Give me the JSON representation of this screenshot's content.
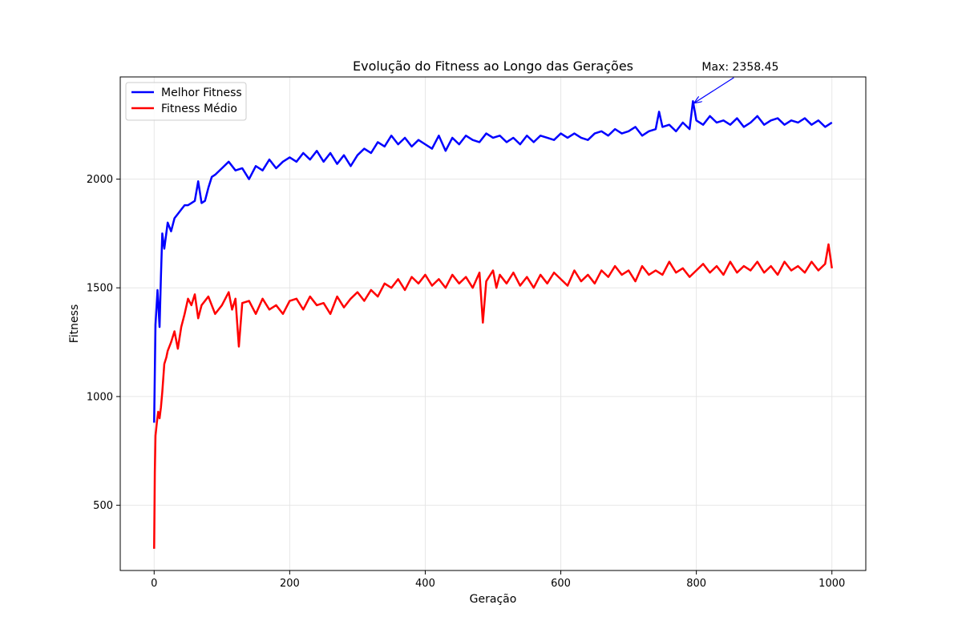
{
  "chart_data": {
    "type": "line",
    "title": "Evolução do Fitness ao Longo das Gerações",
    "xlabel": "Geração",
    "ylabel": "Fitness",
    "xlim": [
      -50,
      1050
    ],
    "ylim": [
      200,
      2470
    ],
    "xticks": [
      0,
      200,
      400,
      600,
      800,
      1000
    ],
    "yticks": [
      500,
      1000,
      1500,
      2000
    ],
    "grid": true,
    "legend_position": "upper-left",
    "series": [
      {
        "name": "Melhor Fitness",
        "color": "#0000ff",
        "x": [
          0,
          2,
          5,
          8,
          10,
          12,
          15,
          20,
          25,
          30,
          35,
          40,
          45,
          50,
          55,
          60,
          65,
          70,
          75,
          80,
          85,
          90,
          100,
          110,
          120,
          130,
          140,
          150,
          160,
          170,
          180,
          190,
          200,
          210,
          220,
          230,
          240,
          250,
          260,
          270,
          280,
          290,
          300,
          310,
          320,
          330,
          340,
          350,
          360,
          370,
          380,
          390,
          400,
          410,
          420,
          430,
          440,
          450,
          460,
          470,
          480,
          490,
          500,
          510,
          520,
          530,
          540,
          550,
          560,
          570,
          580,
          590,
          600,
          610,
          620,
          630,
          640,
          650,
          660,
          670,
          680,
          690,
          700,
          710,
          720,
          730,
          740,
          745,
          750,
          760,
          770,
          780,
          790,
          795,
          800,
          810,
          820,
          830,
          840,
          850,
          860,
          870,
          880,
          890,
          900,
          910,
          920,
          930,
          940,
          950,
          960,
          970,
          980,
          990,
          1000
        ],
        "values": [
          880,
          1330,
          1490,
          1320,
          1550,
          1750,
          1680,
          1800,
          1760,
          1820,
          1840,
          1860,
          1880,
          1880,
          1890,
          1900,
          1990,
          1890,
          1900,
          1960,
          2010,
          2020,
          2050,
          2080,
          2040,
          2050,
          2000,
          2060,
          2040,
          2090,
          2050,
          2080,
          2100,
          2080,
          2120,
          2090,
          2130,
          2080,
          2120,
          2070,
          2110,
          2060,
          2110,
          2140,
          2120,
          2170,
          2150,
          2200,
          2160,
          2190,
          2150,
          2180,
          2160,
          2140,
          2200,
          2130,
          2190,
          2160,
          2200,
          2180,
          2170,
          2210,
          2190,
          2200,
          2170,
          2190,
          2160,
          2200,
          2170,
          2200,
          2190,
          2180,
          2210,
          2190,
          2210,
          2190,
          2180,
          2210,
          2220,
          2200,
          2230,
          2210,
          2220,
          2240,
          2200,
          2220,
          2230,
          2310,
          2240,
          2250,
          2220,
          2260,
          2230,
          2358.45,
          2270,
          2250,
          2290,
          2260,
          2270,
          2250,
          2280,
          2240,
          2260,
          2290,
          2250,
          2270,
          2280,
          2250,
          2270,
          2260,
          2280,
          2250,
          2270,
          2240,
          2260
        ]
      },
      {
        "name": "Fitness Médio",
        "color": "#ff0000",
        "x": [
          0,
          1,
          2,
          4,
          6,
          8,
          10,
          12,
          15,
          18,
          20,
          25,
          30,
          35,
          40,
          45,
          50,
          55,
          60,
          65,
          70,
          80,
          90,
          100,
          110,
          115,
          120,
          125,
          130,
          140,
          150,
          160,
          170,
          180,
          190,
          200,
          210,
          220,
          230,
          240,
          250,
          260,
          270,
          280,
          290,
          300,
          310,
          320,
          330,
          340,
          350,
          360,
          370,
          380,
          390,
          400,
          410,
          420,
          430,
          440,
          450,
          460,
          470,
          480,
          485,
          490,
          500,
          505,
          510,
          520,
          530,
          540,
          550,
          560,
          570,
          580,
          590,
          600,
          610,
          620,
          630,
          640,
          650,
          660,
          670,
          680,
          690,
          700,
          710,
          720,
          730,
          740,
          750,
          760,
          770,
          780,
          790,
          800,
          810,
          820,
          830,
          840,
          850,
          860,
          870,
          880,
          890,
          900,
          910,
          920,
          930,
          940,
          950,
          960,
          970,
          980,
          990,
          995,
          1000
        ],
        "values": [
          300,
          650,
          820,
          880,
          930,
          900,
          950,
          1020,
          1150,
          1180,
          1210,
          1250,
          1300,
          1220,
          1320,
          1380,
          1450,
          1420,
          1470,
          1360,
          1420,
          1460,
          1380,
          1420,
          1480,
          1400,
          1450,
          1230,
          1430,
          1440,
          1380,
          1450,
          1400,
          1420,
          1380,
          1440,
          1450,
          1400,
          1460,
          1420,
          1430,
          1380,
          1460,
          1410,
          1450,
          1480,
          1440,
          1490,
          1460,
          1520,
          1500,
          1540,
          1490,
          1550,
          1520,
          1560,
          1510,
          1540,
          1500,
          1560,
          1520,
          1550,
          1500,
          1570,
          1340,
          1530,
          1580,
          1500,
          1560,
          1520,
          1570,
          1510,
          1550,
          1500,
          1560,
          1520,
          1570,
          1540,
          1510,
          1580,
          1530,
          1560,
          1520,
          1580,
          1550,
          1600,
          1560,
          1580,
          1530,
          1600,
          1560,
          1580,
          1560,
          1620,
          1570,
          1590,
          1550,
          1580,
          1610,
          1570,
          1600,
          1560,
          1620,
          1570,
          1600,
          1580,
          1620,
          1570,
          1600,
          1560,
          1620,
          1580,
          1600,
          1570,
          1620,
          1580,
          1610,
          1700,
          1590
        ]
      }
    ],
    "annotations": [
      {
        "text": "Max: 2358.45",
        "x": 795,
        "y": 2358.45,
        "text_x": 808,
        "text_y": 2500,
        "color": "#0000ff"
      }
    ]
  }
}
